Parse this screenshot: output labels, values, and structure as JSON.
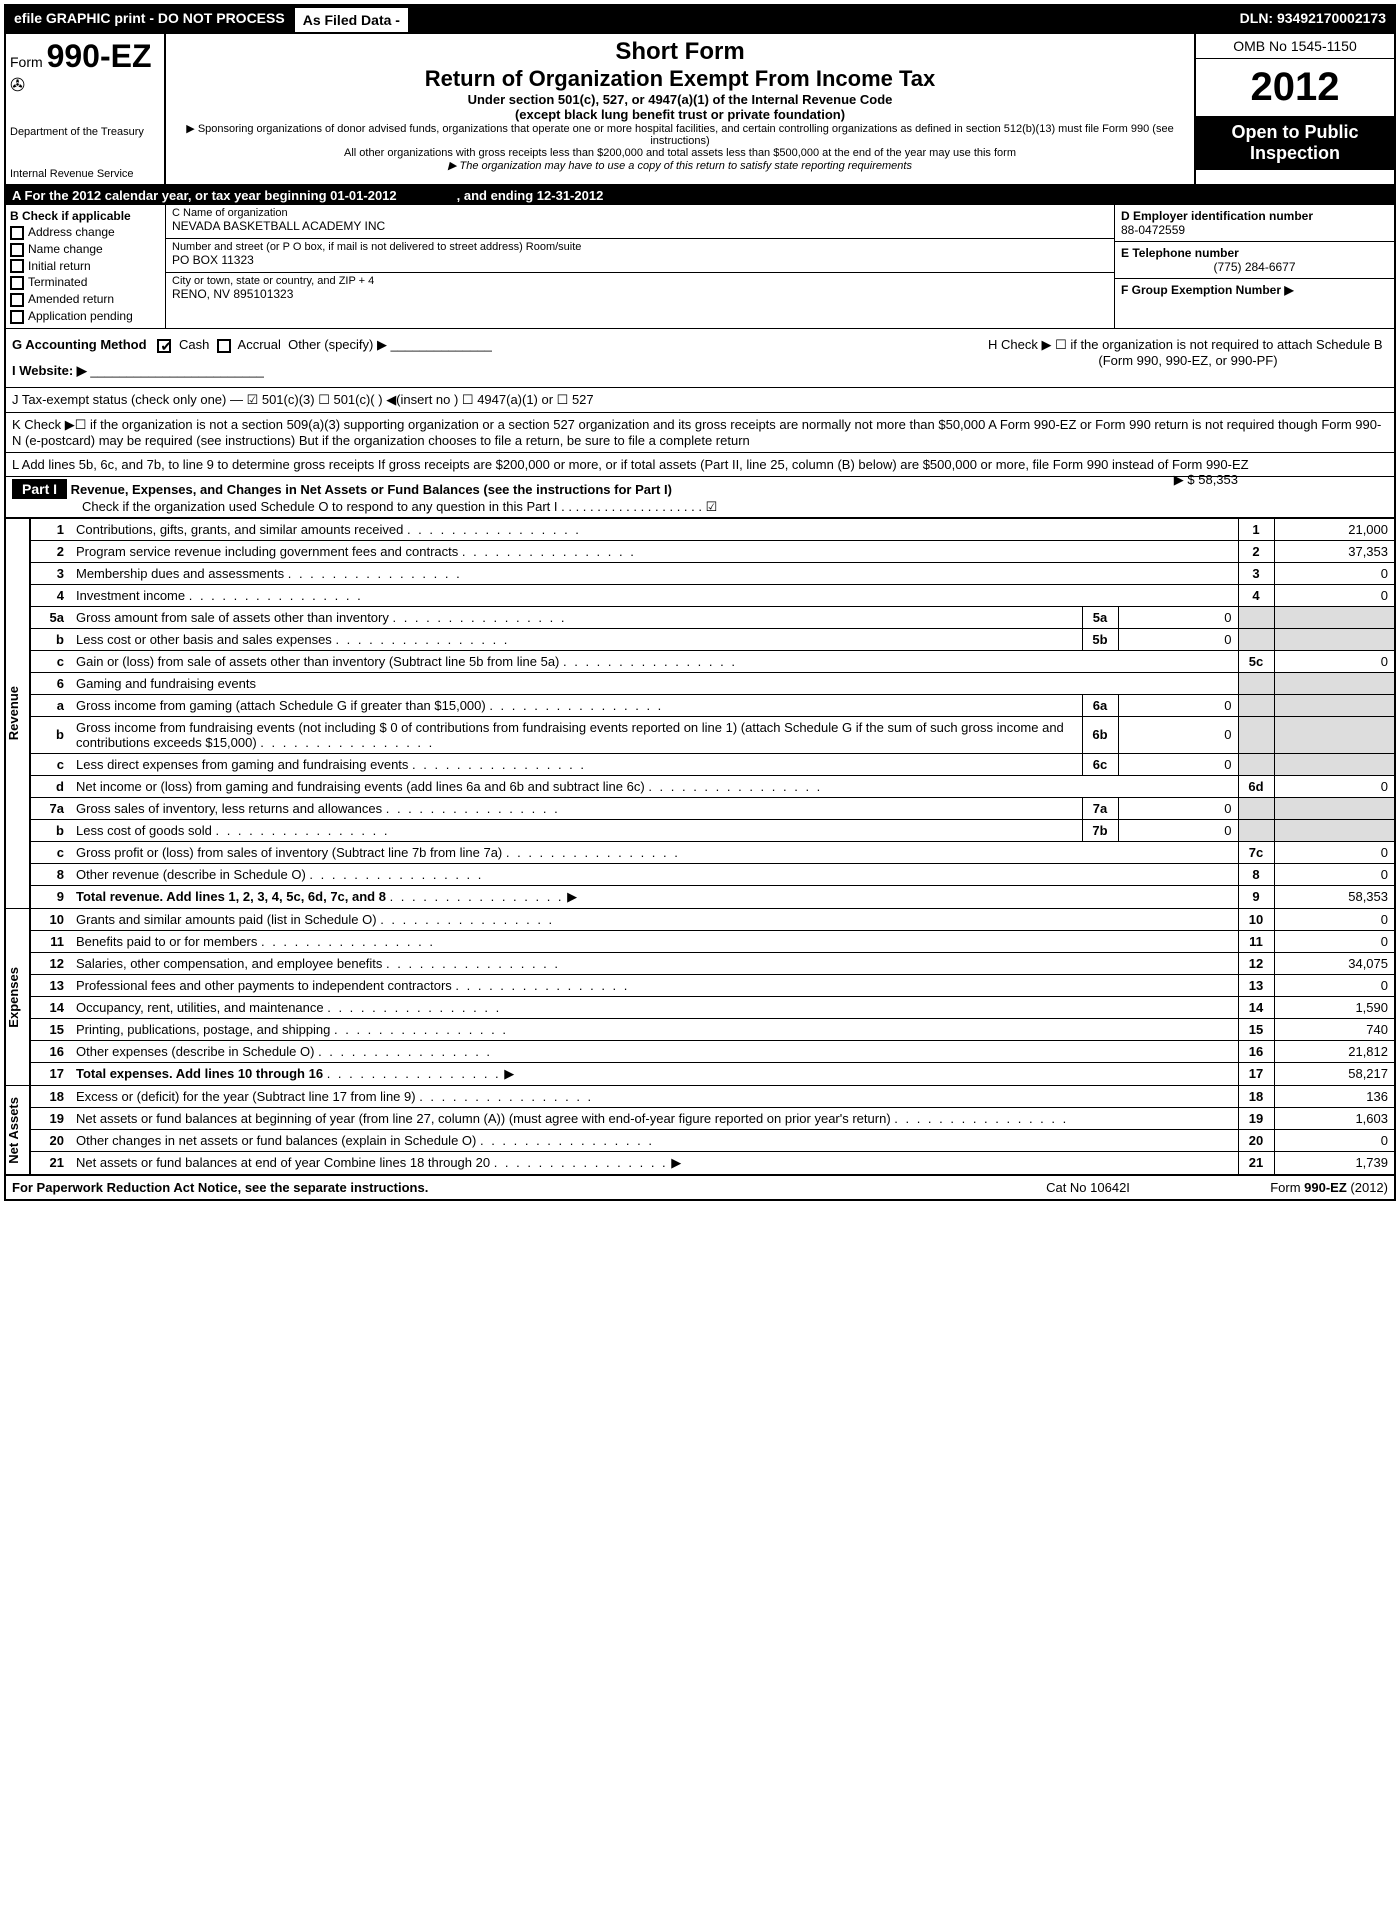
{
  "top": {
    "efile": "efile GRAPHIC print - DO NOT PROCESS",
    "asfiled": "As Filed Data -",
    "dln": "DLN: 93492170002173"
  },
  "header": {
    "form_prefix": "Form",
    "form_number": "990-EZ",
    "dept1": "Department of the Treasury",
    "dept2": "Internal Revenue Service",
    "short": "Short Form",
    "title": "Return of Organization Exempt From Income Tax",
    "sub1": "Under section 501(c), 527, or 4947(a)(1) of the Internal Revenue Code",
    "sub2": "(except black lung benefit trust or private foundation)",
    "note1": "▶ Sponsoring organizations of donor advised funds, organizations that operate one or more hospital facilities, and certain controlling organizations as defined in section 512(b)(13) must file Form 990 (see instructions)",
    "note2": "All other organizations with gross receipts less than $200,000 and total assets less than $500,000 at the end of the year may use this form",
    "note3": "▶ The organization may have to use a copy of this return to satisfy state reporting requirements",
    "omb": "OMB No  1545-1150",
    "year": "2012",
    "open1": "Open to Public",
    "open2": "Inspection"
  },
  "rowA": {
    "text": "A  For the 2012 calendar year, or tax year beginning 01-01-2012",
    "ending": ", and ending 12-31-2012"
  },
  "colB": {
    "title": "B  Check if applicable",
    "items": [
      "Address change",
      "Name change",
      "Initial return",
      "Terminated",
      "Amended return",
      "Application pending"
    ]
  },
  "colC": {
    "name_label": "C Name of organization",
    "name": "NEVADA BASKETBALL ACADEMY INC",
    "addr_label": "Number and street (or P  O  box, if mail is not delivered to street address) Room/suite",
    "addr": "PO BOX 11323",
    "city_label": "City or town, state or country, and ZIP + 4",
    "city": "RENO, NV  895101323"
  },
  "colD": {
    "d_label": "D Employer identification number",
    "d_val": "88-0472559",
    "e_label": "E Telephone number",
    "e_val": "(775) 284-6677",
    "f_label": "F Group Exemption Number    ▶"
  },
  "rowG": {
    "g": "G Accounting Method",
    "cash": "Cash",
    "accrual": "Accrual",
    "other": "Other (specify) ▶",
    "website": "I Website: ▶",
    "h1": "H  Check ▶ ☐ if the organization is not required to attach Schedule B",
    "h2": "(Form 990, 990-EZ, or 990-PF)"
  },
  "rowJ": "J Tax-exempt status (check only one) — ☑ 501(c)(3)   ☐ 501(c)(  ) ◀(insert no ) ☐ 4947(a)(1) or ☐ 527",
  "rowK": "K Check ▶☐ if the organization is not a section 509(a)(3) supporting organization or a section 527 organization and its gross receipts are normally not more than $50,000  A Form 990-EZ or Form 990 return is not required though Form 990-N (e-postcard) may be required (see instructions)  But if the organization chooses to file a return, be sure to file a complete return",
  "rowL": {
    "text": "L Add lines 5b, 6c, and 7b, to line 9 to determine gross receipts  If gross receipts are $200,000 or more, or if total assets (Part II, line 25, column (B) below) are $500,000 or more, file Form 990 instead of Form 990-EZ",
    "amount": "▶ $ 58,353"
  },
  "part1": {
    "label": "Part I",
    "title": "Revenue, Expenses, and Changes in Net Assets or Fund Balances (see the instructions for Part I)",
    "sub": "Check if the organization used Schedule O to respond to any question in this Part I  .  .  .  .  .  .  .  .  .  .  .  .  .  .  .  .  .  .  .  .  ☑"
  },
  "sections": {
    "revenue": "Revenue",
    "expenses": "Expenses",
    "netassets": "Net Assets"
  },
  "lines": [
    {
      "n": "1",
      "desc": "Contributions, gifts, grants, and similar amounts received",
      "box": "1",
      "val": "21,000"
    },
    {
      "n": "2",
      "desc": "Program service revenue including government fees and contracts",
      "box": "2",
      "val": "37,353"
    },
    {
      "n": "3",
      "desc": "Membership dues and assessments",
      "box": "3",
      "val": "0"
    },
    {
      "n": "4",
      "desc": "Investment income",
      "box": "4",
      "val": "0"
    },
    {
      "n": "5a",
      "desc": "Gross amount from sale of assets other than inventory",
      "sub": "5a",
      "subval": "0"
    },
    {
      "n": "b",
      "desc": "Less  cost or other basis and sales expenses",
      "sub": "5b",
      "subval": "0"
    },
    {
      "n": "c",
      "desc": "Gain or (loss) from sale of assets other than inventory (Subtract line 5b from line 5a)",
      "box": "5c",
      "val": "0"
    },
    {
      "n": "6",
      "desc": "Gaming and fundraising events"
    },
    {
      "n": "a",
      "desc": "Gross income from gaming (attach Schedule G if greater than $15,000)",
      "sub": "6a",
      "subval": "0"
    },
    {
      "n": "b",
      "desc": "Gross income from fundraising events (not including $  0              of contributions from fundraising events reported on line 1) (attach Schedule G if the sum of such gross income and contributions exceeds $15,000)",
      "sub": "6b",
      "subval": "0"
    },
    {
      "n": "c",
      "desc": "Less  direct expenses from gaming and fundraising events",
      "sub": "6c",
      "subval": "0"
    },
    {
      "n": "d",
      "desc": "Net income or (loss) from gaming and fundraising events (add lines 6a and 6b and subtract line 6c)",
      "box": "6d",
      "val": "0"
    },
    {
      "n": "7a",
      "desc": "Gross sales of inventory, less returns and allowances",
      "sub": "7a",
      "subval": "0"
    },
    {
      "n": "b",
      "desc": "Less  cost of goods sold",
      "sub": "7b",
      "subval": "0"
    },
    {
      "n": "c",
      "desc": "Gross profit or (loss) from sales of inventory (Subtract line 7b from line 7a)",
      "box": "7c",
      "val": "0"
    },
    {
      "n": "8",
      "desc": "Other revenue (describe in Schedule O)",
      "box": "8",
      "val": "0"
    },
    {
      "n": "9",
      "desc": "Total revenue. Add lines 1, 2, 3, 4, 5c, 6d, 7c, and 8",
      "box": "9",
      "val": "58,353",
      "bold": true,
      "arrow": true
    },
    {
      "n": "10",
      "desc": "Grants and similar amounts paid (list in Schedule O)",
      "box": "10",
      "val": "0"
    },
    {
      "n": "11",
      "desc": "Benefits paid to or for members",
      "box": "11",
      "val": "0"
    },
    {
      "n": "12",
      "desc": "Salaries, other compensation, and employee benefits",
      "box": "12",
      "val": "34,075"
    },
    {
      "n": "13",
      "desc": "Professional fees and other payments to independent contractors",
      "box": "13",
      "val": "0"
    },
    {
      "n": "14",
      "desc": "Occupancy, rent, utilities, and maintenance",
      "box": "14",
      "val": "1,590"
    },
    {
      "n": "15",
      "desc": "Printing, publications, postage, and shipping",
      "box": "15",
      "val": "740"
    },
    {
      "n": "16",
      "desc": "Other expenses (describe in Schedule O)",
      "box": "16",
      "val": "21,812"
    },
    {
      "n": "17",
      "desc": "Total expenses. Add lines 10 through 16",
      "box": "17",
      "val": "58,217",
      "bold": true,
      "arrow": true
    },
    {
      "n": "18",
      "desc": "Excess or (deficit) for the year (Subtract line 17 from line 9)",
      "box": "18",
      "val": "136"
    },
    {
      "n": "19",
      "desc": "Net assets or fund balances at beginning of year (from line 27, column (A)) (must agree with end-of-year figure reported on prior year's return)",
      "box": "19",
      "val": "1,603"
    },
    {
      "n": "20",
      "desc": "Other changes in net assets or fund balances (explain in Schedule O)",
      "box": "20",
      "val": "0"
    },
    {
      "n": "21",
      "desc": "Net assets or fund balances at end of year  Combine lines 18 through 20",
      "box": "21",
      "val": "1,739",
      "arrow": true
    }
  ],
  "footer": {
    "left": "For Paperwork Reduction Act Notice, see the separate instructions.",
    "mid": "Cat No  10642I",
    "right": "Form 990-EZ (2012)"
  }
}
